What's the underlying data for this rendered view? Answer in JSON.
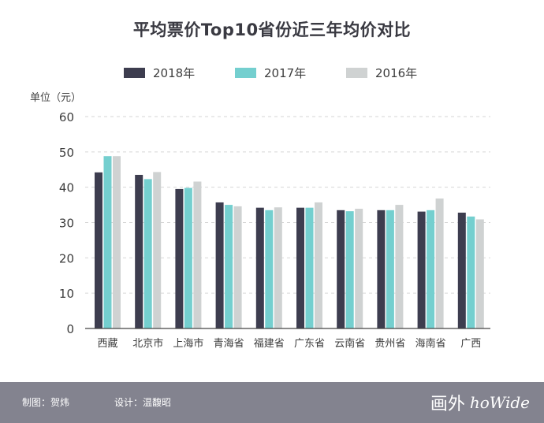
{
  "header": {
    "title": "平均票价Top10省份近三年均价对比"
  },
  "unit_label": "单位（元）",
  "footer": {
    "producer": "制图：贺炜",
    "designer": "设计：温馥昭",
    "logo_cn": "画外",
    "logo_en": "hoWide"
  },
  "colors": {
    "s2018": "#3d3d4f",
    "s2017": "#74cfcf",
    "s2016": "#cfd2d2",
    "footer_bg": "#83838f",
    "grid": "#d6d6d6"
  },
  "chart_data": {
    "type": "bar",
    "title": "平均票价Top10省份近三年均价对比",
    "ylabel": "单位（元）",
    "xlabel": "",
    "ylim": [
      0,
      60
    ],
    "yticks": [
      0,
      10,
      20,
      30,
      40,
      50,
      60
    ],
    "grid": true,
    "legend_position": "top-center",
    "categories": [
      "西藏",
      "北京市",
      "上海市",
      "青海省",
      "福建省",
      "广东省",
      "云南省",
      "贵州省",
      "海南省",
      "广西"
    ],
    "series": [
      {
        "name": "2018年",
        "values": [
          44.2,
          43.5,
          39.5,
          35.7,
          34.2,
          34.2,
          33.5,
          33.5,
          33.1,
          32.8
        ]
      },
      {
        "name": "2017年",
        "values": [
          48.8,
          42.3,
          39.8,
          35.0,
          33.5,
          34.2,
          33.2,
          33.5,
          33.5,
          31.7
        ]
      },
      {
        "name": "2016年",
        "values": [
          48.8,
          44.3,
          41.6,
          34.6,
          34.3,
          35.7,
          33.9,
          35.0,
          36.8,
          30.9
        ]
      }
    ]
  }
}
